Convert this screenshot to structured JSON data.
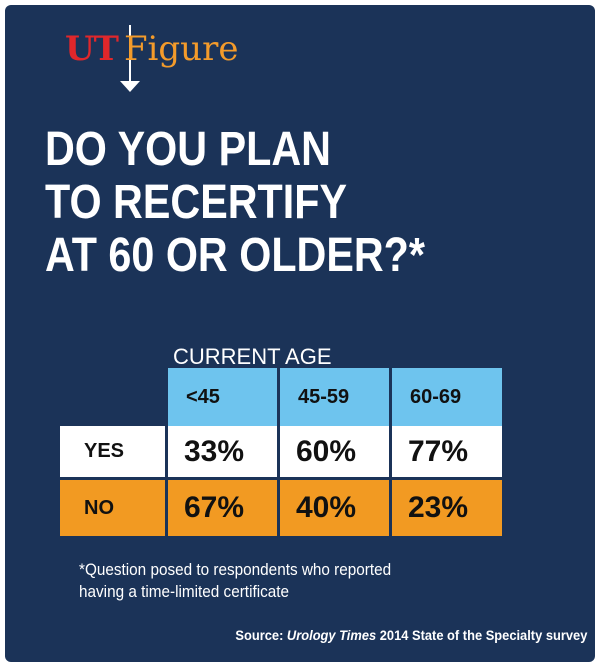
{
  "brand": {
    "ut": "UT",
    "figure": "Figure"
  },
  "title_lines": [
    "DO YOU PLAN",
    "TO RECERTIFY",
    "AT 60 OR OLDER?*"
  ],
  "chart_data": {
    "type": "table",
    "title": "DO YOU PLAN TO RECERTIFY AT 60 OR OLDER?*",
    "header_label": "CURRENT AGE",
    "categories": [
      "<45",
      "45-59",
      "60-69"
    ],
    "series": [
      {
        "name": "YES",
        "values": [
          33,
          60,
          77
        ],
        "labels": [
          "33%",
          "60%",
          "77%"
        ],
        "color": "#ffffff"
      },
      {
        "name": "NO",
        "values": [
          67,
          40,
          23
        ],
        "labels": [
          "67%",
          "40%",
          "23%"
        ],
        "color": "#f29a22"
      }
    ],
    "header_color": "#6ec4ee"
  },
  "footnote_lines": [
    "*Question posed to respondents who reported",
    "having a time-limited certificate"
  ],
  "source": {
    "prefix": "Source: ",
    "italic": "Urology Times",
    "suffix": " 2014 State of the Specialty survey"
  },
  "colors": {
    "panel": "#1b3358",
    "brand_red": "#e0272b",
    "brand_orange": "#f39b2b"
  }
}
